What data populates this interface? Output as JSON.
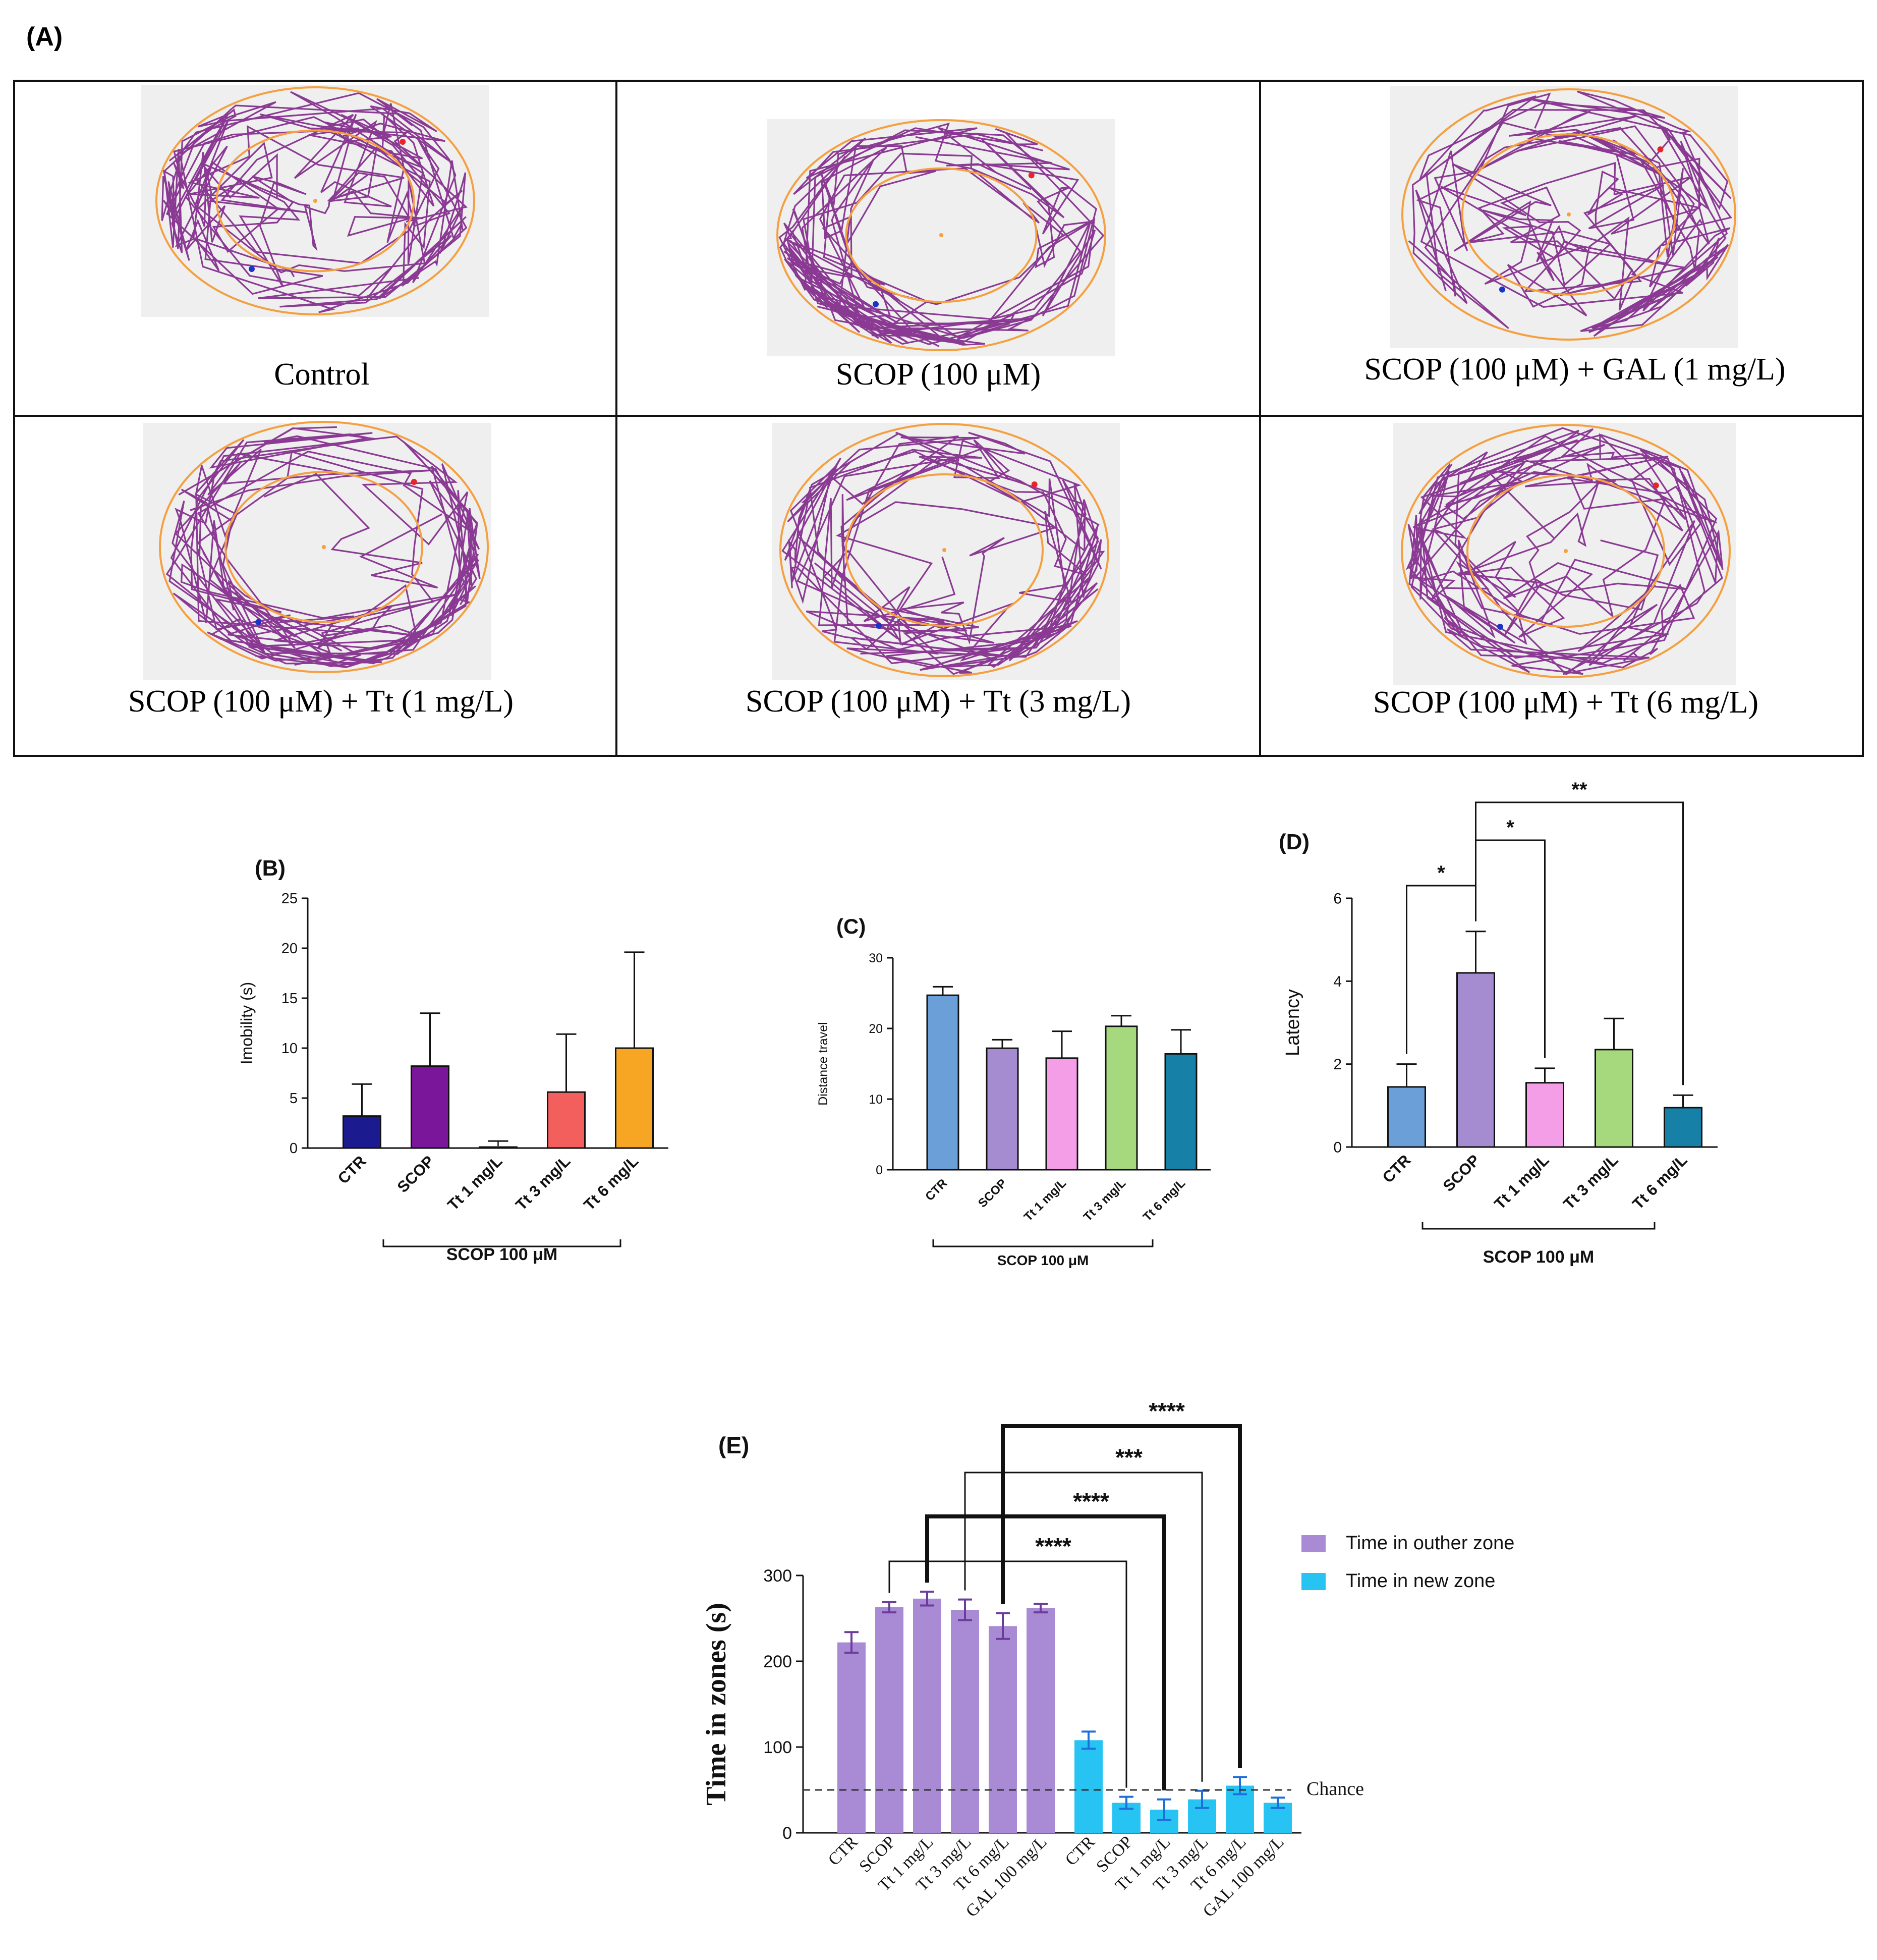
{
  "figure": {
    "panel_a_letter": "(A)",
    "colors": {
      "track": "#8a3a93",
      "arena_ring": "#f5a040",
      "arena_bg": "#efefef",
      "start_dot": "#e8232a",
      "end_dot": "#1a34c8"
    },
    "tracking_tiles": [
      {
        "label": "Control",
        "inner_ratio": 0.62,
        "inner_density": 70,
        "outer_density": 90
      },
      {
        "label": "SCOP (100 μM)",
        "inner_ratio": 0.58,
        "inner_density": 0,
        "outer_density": 110
      },
      {
        "label": "SCOP (100 μM) + GAL (1 mg/L)",
        "inner_ratio": 0.64,
        "inner_density": 80,
        "outer_density": 70
      },
      {
        "label": "SCOP (100 μM) + Tt (1 mg/L)",
        "inner_ratio": 0.6,
        "inner_density": 10,
        "outer_density": 110
      },
      {
        "label": "SCOP (100 μM) + Tt (3 mg/L)",
        "inner_ratio": 0.6,
        "inner_density": 22,
        "outer_density": 95
      },
      {
        "label": "SCOP (100 μM) + Tt (6 mg/L)",
        "inner_ratio": 0.6,
        "inner_density": 45,
        "outer_density": 90
      }
    ]
  },
  "chart_data": [
    {
      "id": "B",
      "letter": "(B)",
      "type": "bar",
      "ylabel": "Imobility (s)",
      "ylim": [
        0,
        25
      ],
      "yticks": [
        "0",
        "5",
        "10",
        "15",
        "20",
        "25"
      ],
      "categories": [
        "CTR",
        "SCOP",
        "Tt 1 mg/L",
        "Tt 3 mg/L",
        "Tt 6 mg/L"
      ],
      "values": [
        3.2,
        8.2,
        0.1,
        5.6,
        10.0
      ],
      "errors": [
        3.2,
        5.3,
        0.6,
        5.8,
        9.6
      ],
      "colors": [
        "#1b1b8f",
        "#7a169a",
        "#8e8e8e",
        "#f25f5c",
        "#f6a623"
      ],
      "bracket_label": "SCOP 100 μM",
      "significance": []
    },
    {
      "id": "C",
      "letter": "(C)",
      "type": "bar",
      "ylabel": "Distance travel",
      "ylim": [
        0,
        30
      ],
      "yticks": [
        "0",
        "10",
        "20",
        "30"
      ],
      "categories": [
        "CTR",
        "SCOP",
        "Tt 1 mg/L",
        "Tt 3 mg/L",
        "Tt 6 mg/L"
      ],
      "values": [
        24.7,
        17.2,
        15.8,
        20.3,
        16.4
      ],
      "errors": [
        1.2,
        1.2,
        3.8,
        1.5,
        3.4
      ],
      "colors": [
        "#6a9fd8",
        "#a58bd0",
        "#f59ee8",
        "#a6d87e",
        "#1680a6"
      ],
      "bracket_label": "SCOP 100 μM",
      "significance": []
    },
    {
      "id": "D",
      "letter": "(D)",
      "type": "bar",
      "ylabel": "Latency",
      "ylim": [
        0,
        6
      ],
      "yticks": [
        "0",
        "2",
        "4",
        "6"
      ],
      "categories": [
        "CTR",
        "SCOP",
        "Tt 1 mg/L",
        "Tt 3 mg/L",
        "Tt 6 mg/L"
      ],
      "values": [
        1.45,
        4.2,
        1.55,
        2.35,
        0.95
      ],
      "errors": [
        0.55,
        1.0,
        0.35,
        0.75,
        0.3
      ],
      "colors": [
        "#6a9fd8",
        "#a58bd0",
        "#f59ee8",
        "#a6d87e",
        "#1680a6"
      ],
      "bracket_label": "SCOP 100 μM",
      "significance": [
        {
          "from": 0,
          "to": 1,
          "label": "*"
        },
        {
          "from": 1,
          "to": 2,
          "label": "*"
        },
        {
          "from": 1,
          "to": 4,
          "label": "**"
        }
      ]
    },
    {
      "id": "E",
      "letter": "(E)",
      "type": "bar",
      "ylabel": "Time in  zones (s)",
      "ylim": [
        0,
        300
      ],
      "yticks": [
        "0",
        "100",
        "200",
        "300"
      ],
      "categories": [
        "CTR",
        "SCOP",
        "Tt 1 mg/L",
        "Tt 3 mg/L",
        "Tt 6 mg/L",
        "GAL 100 mg/L"
      ],
      "series": [
        {
          "name": "Time in outher zone",
          "color": "#a98ad4",
          "err_color": "#6b3c9c",
          "values": [
            222,
            263,
            273,
            260,
            241,
            262
          ],
          "errors": [
            12,
            6,
            8,
            12,
            15,
            5
          ]
        },
        {
          "name": "Time in new zone",
          "color": "#27c3f2",
          "err_color": "#1e6fd9",
          "values": [
            108,
            35,
            27,
            39,
            55,
            35
          ],
          "errors": [
            10,
            7,
            12,
            10,
            10,
            6
          ]
        }
      ],
      "chance_value": 50,
      "chance_label": "Chance",
      "significance": [
        {
          "label": "****"
        },
        {
          "label": "****"
        },
        {
          "label": "***"
        },
        {
          "label": "****"
        }
      ]
    }
  ]
}
